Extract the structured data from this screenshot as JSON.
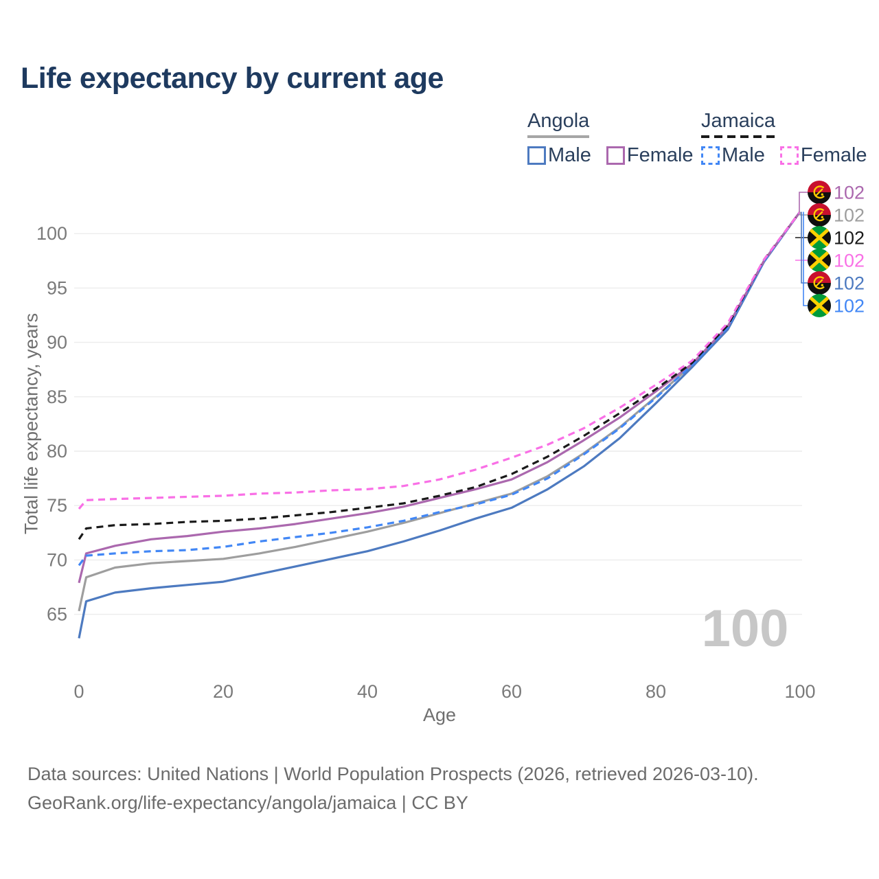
{
  "title": "Life expectancy by current age",
  "legend": {
    "groups": [
      {
        "label": "Angola",
        "items": [
          {
            "label": "Male"
          },
          {
            "label": "Female"
          }
        ]
      },
      {
        "label": "Jamaica",
        "items": [
          {
            "label": "Male"
          },
          {
            "label": "Female"
          }
        ]
      }
    ]
  },
  "footer": {
    "line1": "Data sources: United Nations | World Population Prospects (2026, retrieved 2026-03-10).",
    "line2": "GeoRank.org/life-expectancy/angola/jamaica | CC BY"
  },
  "colors": {
    "title": "#1e3a5f",
    "angola_male": "#4d7ac0",
    "angola_female": "#ab68ae",
    "angola_both": "#9e9e9e",
    "jamaica_male": "#4287f5",
    "jamaica_both": "#1a1a1a",
    "jamaica_female": "#f970e6",
    "gridline": "#ececec",
    "tick_text": "#7a7a7a",
    "watermark": "#c7c7c7"
  },
  "chart_data": {
    "type": "line",
    "title": "Life expectancy by current age",
    "xlabel": "Age",
    "ylabel": "Total life expectancy, years",
    "xlim": [
      0,
      100
    ],
    "ylim": [
      61,
      103
    ],
    "x_ticks": [
      0,
      20,
      40,
      60,
      80,
      100
    ],
    "y_ticks": [
      65,
      70,
      75,
      80,
      85,
      90,
      95,
      100
    ],
    "grid": "horizontal",
    "legend_position": "top-right",
    "watermark": "100",
    "x": [
      0,
      1,
      5,
      10,
      15,
      20,
      25,
      30,
      35,
      40,
      45,
      50,
      55,
      60,
      65,
      70,
      75,
      80,
      85,
      90,
      95,
      100
    ],
    "series": [
      {
        "name": "Angola",
        "country": "angola",
        "sex": "both",
        "style": "solid",
        "color_key": "angola_both",
        "values": [
          65.3,
          68.4,
          69.3,
          69.7,
          69.9,
          70.1,
          70.6,
          71.2,
          71.9,
          72.6,
          73.4,
          74.3,
          75.2,
          76.1,
          77.7,
          79.8,
          82.2,
          85.0,
          87.9,
          91.4,
          97.5,
          102
        ]
      },
      {
        "name": "Angola Male",
        "country": "angola",
        "sex": "male",
        "style": "solid",
        "color_key": "angola_male",
        "values": [
          62.8,
          66.2,
          67.0,
          67.4,
          67.7,
          68.0,
          68.7,
          69.4,
          70.1,
          70.8,
          71.7,
          72.7,
          73.8,
          74.8,
          76.5,
          78.6,
          81.2,
          84.4,
          87.7,
          91.2,
          97.4,
          102
        ]
      },
      {
        "name": "Angola Female",
        "country": "angola",
        "sex": "female",
        "style": "solid",
        "color_key": "angola_female",
        "values": [
          67.9,
          70.6,
          71.3,
          71.9,
          72.2,
          72.6,
          72.9,
          73.3,
          73.8,
          74.3,
          74.9,
          75.7,
          76.5,
          77.4,
          79.0,
          81.0,
          83.1,
          85.5,
          88.0,
          91.5,
          97.5,
          102
        ]
      },
      {
        "name": "Jamaica Male",
        "country": "jamaica",
        "sex": "male",
        "style": "dashed",
        "color_key": "jamaica_male",
        "values": [
          69.5,
          70.4,
          70.6,
          70.8,
          70.9,
          71.2,
          71.7,
          72.1,
          72.5,
          73.0,
          73.6,
          74.4,
          75.1,
          76.0,
          77.5,
          79.7,
          82.1,
          84.9,
          87.9,
          91.4,
          97.5,
          102
        ]
      },
      {
        "name": "Jamaica",
        "country": "jamaica",
        "sex": "both",
        "style": "dashed",
        "color_key": "jamaica_both",
        "values": [
          71.9,
          72.9,
          73.2,
          73.3,
          73.5,
          73.6,
          73.8,
          74.1,
          74.4,
          74.8,
          75.2,
          75.9,
          76.7,
          77.9,
          79.5,
          81.4,
          83.5,
          85.7,
          88.1,
          91.6,
          97.6,
          102
        ]
      },
      {
        "name": "Jamaica Female",
        "country": "jamaica",
        "sex": "female",
        "style": "dashed",
        "color_key": "jamaica_female",
        "values": [
          74.7,
          75.5,
          75.6,
          75.7,
          75.8,
          75.9,
          76.1,
          76.2,
          76.4,
          76.5,
          76.8,
          77.4,
          78.3,
          79.4,
          80.6,
          82.1,
          84.0,
          86.1,
          88.3,
          91.8,
          97.6,
          102
        ]
      }
    ],
    "end_labels": [
      {
        "series": "Angola Female",
        "country": "angola",
        "value": 102,
        "color_key": "angola_female"
      },
      {
        "series": "Angola",
        "country": "angola",
        "value": 102,
        "color_key": "angola_both"
      },
      {
        "series": "Jamaica",
        "country": "jamaica",
        "value": 102,
        "color_key": "jamaica_both"
      },
      {
        "series": "Jamaica Female",
        "country": "jamaica",
        "value": 102,
        "color_key": "jamaica_female"
      },
      {
        "series": "Angola Male",
        "country": "angola",
        "value": 102,
        "color_key": "angola_male"
      },
      {
        "series": "Jamaica Male",
        "country": "jamaica",
        "value": 102,
        "color_key": "jamaica_male"
      }
    ]
  }
}
